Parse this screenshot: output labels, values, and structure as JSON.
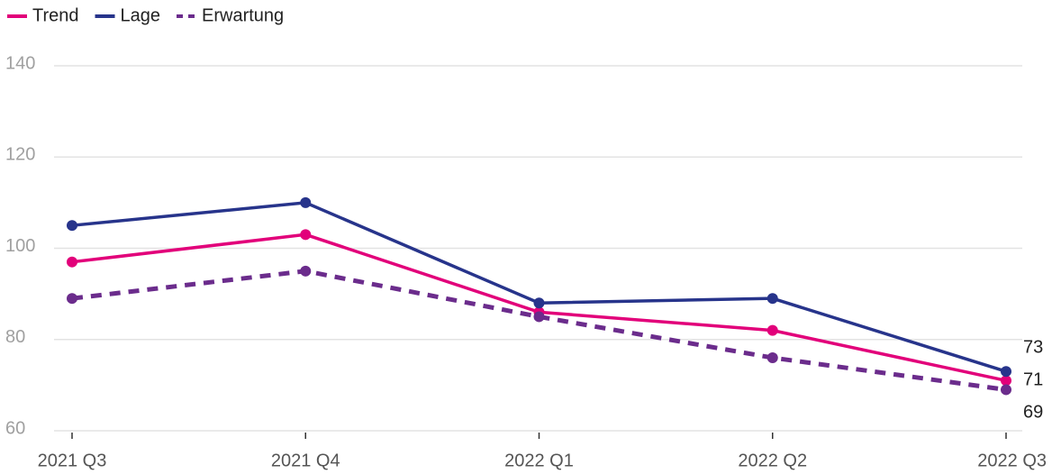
{
  "chart_data": {
    "type": "line",
    "categories": [
      "2021 Q3",
      "2021 Q4",
      "2022 Q1",
      "2022 Q2",
      "2022 Q3"
    ],
    "series": [
      {
        "name": "Trend",
        "color": "#e2007a",
        "values": [
          97,
          103,
          86,
          82,
          71
        ]
      },
      {
        "name": "Lage",
        "color": "#27348b",
        "values": [
          105,
          110,
          88,
          89,
          73
        ]
      },
      {
        "name": "Erwartung",
        "color": "#6b2c8c",
        "values": [
          89,
          95,
          85,
          76,
          69
        ],
        "dashed": true
      }
    ],
    "ylim": [
      60,
      140
    ],
    "yticks": [
      60,
      80,
      100,
      120,
      140
    ],
    "grid": true,
    "legend": "top-left"
  }
}
